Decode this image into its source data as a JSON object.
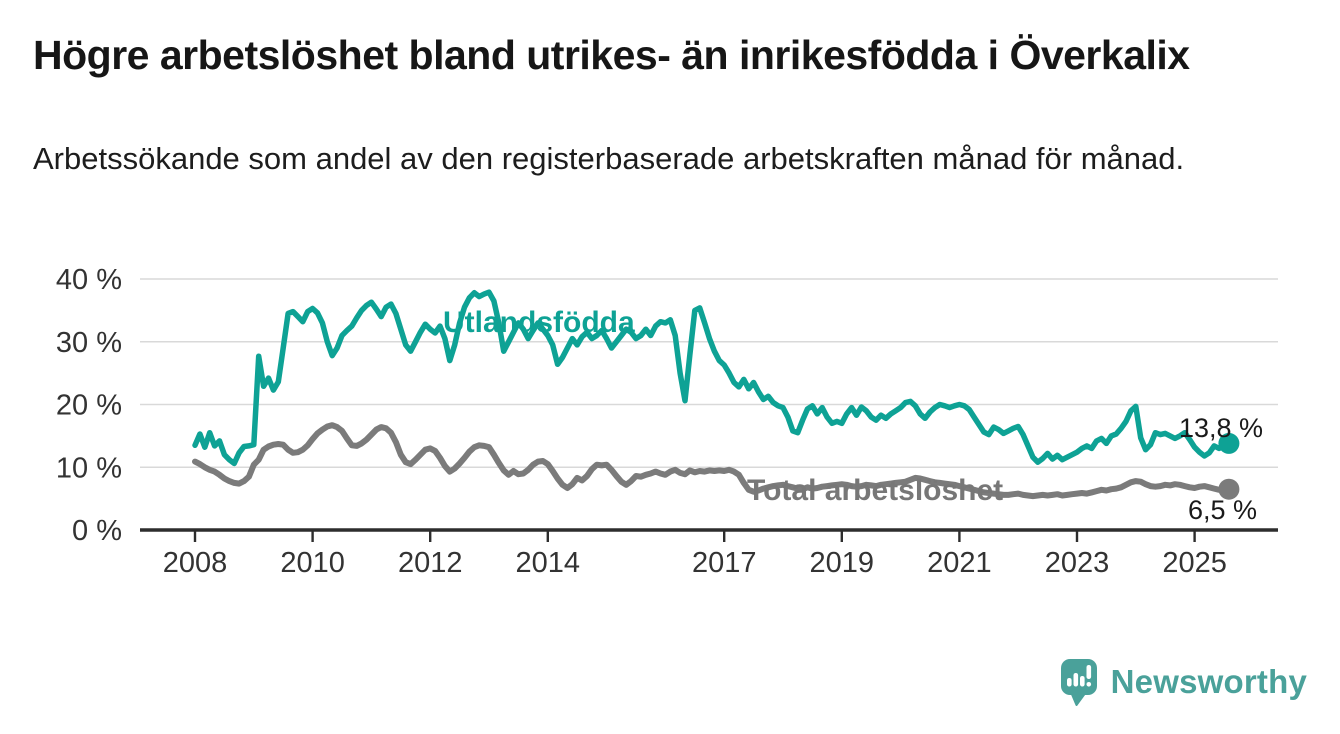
{
  "chart_data": {
    "type": "line",
    "title": "Högre arbetslöshet bland utrikes- än inrikesfödda i Överkalix",
    "subtitle": "Arbetssökande som andel av den registerbaserade arbetskraften månad för månad.",
    "unit": "%",
    "x_axis": {
      "start_year": 2008,
      "start_month": 1,
      "frequency": "monthly",
      "tick_years": [
        2008,
        2010,
        2012,
        2014,
        2017,
        2019,
        2021,
        2023,
        2025
      ]
    },
    "y_axis": {
      "tick_values": [
        0,
        10,
        20,
        30,
        40
      ],
      "tick_labels": [
        "0 %",
        "10 %",
        "20 %",
        "30 %",
        "40 %"
      ],
      "ylim": [
        0,
        42
      ],
      "grid": true
    },
    "legend": "inline-labels",
    "series": [
      {
        "name": "Utlandsfödda",
        "color": "#0ea295",
        "end_label": "13,8 %",
        "end_value": 13.8,
        "values": [
          13.5,
          15.3,
          13.2,
          15.5,
          13.4,
          14.2,
          12.0,
          11.2,
          10.6,
          12.3,
          13.3,
          13.4,
          13.6,
          27.7,
          22.9,
          24.2,
          22.3,
          23.6,
          29.0,
          34.5,
          34.8,
          34.0,
          33.2,
          34.8,
          35.3,
          34.6,
          33.0,
          30.0,
          27.8,
          29.0,
          31.0,
          31.8,
          32.5,
          33.8,
          35.0,
          35.8,
          36.3,
          35.2,
          34.0,
          35.5,
          36.0,
          34.5,
          32.0,
          29.5,
          28.5,
          30.0,
          31.5,
          32.8,
          32.0,
          31.4,
          32.5,
          30.5,
          27.0,
          29.5,
          33.0,
          35.5,
          37.0,
          37.8,
          37.2,
          37.6,
          37.9,
          36.5,
          33.0,
          28.5,
          30.0,
          31.5,
          33.0,
          32.0,
          30.5,
          31.8,
          33.0,
          32.0,
          31.0,
          29.5,
          26.4,
          27.5,
          29.0,
          30.5,
          29.5,
          30.8,
          31.5,
          30.5,
          31.0,
          31.8,
          30.5,
          29.0,
          30.0,
          31.0,
          32.0,
          31.5,
          30.5,
          31.0,
          32.0,
          31.0,
          32.5,
          33.2,
          33.0,
          33.5,
          31.0,
          25.0,
          20.6,
          28.0,
          35.0,
          35.4,
          33.0,
          30.5,
          28.5,
          27.0,
          26.3,
          25.0,
          23.5,
          22.8,
          24.0,
          22.5,
          23.5,
          22.0,
          20.8,
          21.3,
          20.3,
          19.8,
          19.5,
          18.0,
          15.8,
          15.5,
          17.5,
          19.3,
          19.8,
          18.5,
          19.5,
          18.0,
          17.0,
          17.3,
          17.0,
          18.5,
          19.5,
          18.3,
          19.6,
          19.0,
          18.0,
          17.5,
          18.3,
          17.8,
          18.5,
          19.0,
          19.5,
          20.3,
          20.5,
          19.8,
          18.5,
          17.8,
          18.8,
          19.5,
          20.0,
          19.8,
          19.5,
          19.8,
          20.0,
          19.8,
          19.2,
          18.0,
          16.8,
          15.6,
          15.2,
          16.4,
          16.0,
          15.4,
          15.8,
          16.2,
          16.5,
          15.2,
          13.4,
          11.6,
          10.8,
          11.4,
          12.2,
          11.3,
          11.9,
          11.2,
          11.6,
          12.0,
          12.4,
          13.0,
          13.4,
          13.0,
          14.2,
          14.6,
          13.8,
          15.0,
          15.3,
          16.2,
          17.3,
          19.0,
          19.7,
          14.7,
          12.8,
          13.6,
          15.5,
          15.2,
          15.4,
          15.0,
          14.6,
          15.0,
          15.5,
          14.4,
          13.2,
          12.4,
          11.8,
          12.3,
          13.4,
          13.0,
          13.5,
          13.8
        ]
      },
      {
        "name": "Total arbetslöshet",
        "color": "#7b7b7b",
        "end_label": "6,5 %",
        "end_value": 6.5,
        "values": [
          10.9,
          10.5,
          10.0,
          9.6,
          9.3,
          8.8,
          8.2,
          7.8,
          7.5,
          7.4,
          7.8,
          8.5,
          10.4,
          11.2,
          12.8,
          13.3,
          13.6,
          13.7,
          13.6,
          12.8,
          12.3,
          12.4,
          12.8,
          13.5,
          14.5,
          15.4,
          16.0,
          16.5,
          16.7,
          16.4,
          15.8,
          14.6,
          13.5,
          13.4,
          13.8,
          14.4,
          15.2,
          16.0,
          16.4,
          16.2,
          15.5,
          14.0,
          12.0,
          10.8,
          10.5,
          11.2,
          12.0,
          12.8,
          13.0,
          12.6,
          11.5,
          10.2,
          9.3,
          9.8,
          10.6,
          11.5,
          12.5,
          13.2,
          13.5,
          13.4,
          13.2,
          12.0,
          10.7,
          9.5,
          8.8,
          9.4,
          8.9,
          9.0,
          9.6,
          10.4,
          10.9,
          11.0,
          10.5,
          9.4,
          8.2,
          7.2,
          6.7,
          7.3,
          8.3,
          7.9,
          8.6,
          9.7,
          10.4,
          10.3,
          10.4,
          9.6,
          8.6,
          7.7,
          7.2,
          7.8,
          8.6,
          8.5,
          8.8,
          9.0,
          9.3,
          9.0,
          8.8,
          9.3,
          9.6,
          9.1,
          8.9,
          9.5,
          9.2,
          9.4,
          9.3,
          9.5,
          9.4,
          9.5,
          9.4,
          9.6,
          9.3,
          8.8,
          7.5,
          6.4,
          6.1,
          6.3,
          6.6,
          6.8,
          7.0,
          7.1,
          7.2,
          7.0,
          6.8,
          6.6,
          6.5,
          6.8,
          6.6,
          6.7,
          6.9,
          7.0,
          7.1,
          7.2,
          7.3,
          7.2,
          7.0,
          6.9,
          7.0,
          7.2,
          7.1,
          7.0,
          7.2,
          7.3,
          7.4,
          7.5,
          7.6,
          7.7,
          8.0,
          8.3,
          8.2,
          8.0,
          7.8,
          7.6,
          7.5,
          7.4,
          7.3,
          7.2,
          7.0,
          6.8,
          6.6,
          6.4,
          6.2,
          6.0,
          5.9,
          5.8,
          5.7,
          5.6,
          5.6,
          5.7,
          5.8,
          5.6,
          5.5,
          5.4,
          5.5,
          5.6,
          5.5,
          5.6,
          5.7,
          5.5,
          5.6,
          5.7,
          5.8,
          5.9,
          5.8,
          6.0,
          6.2,
          6.4,
          6.3,
          6.5,
          6.6,
          6.8,
          7.2,
          7.6,
          7.8,
          7.7,
          7.3,
          7.0,
          6.9,
          7.0,
          7.2,
          7.1,
          7.3,
          7.2,
          7.0,
          6.8,
          6.7,
          6.9,
          7.0,
          6.8,
          6.6,
          6.4,
          6.4,
          6.5
        ]
      }
    ]
  },
  "branding": {
    "name": "Newsworthy",
    "color": "#4aa19a",
    "icon": "speech-bubble-bar-chart-icon"
  }
}
